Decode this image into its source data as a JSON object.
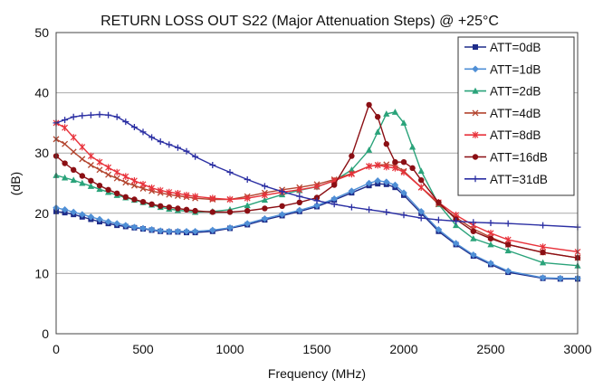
{
  "chart_data": {
    "type": "line",
    "title": "RETURN LOSS OUT S22 (Major Attenuation Steps) @ +25°C",
    "xlabel": "Frequency (MHz)",
    "ylabel": "(dB)",
    "xlim": [
      0,
      3000
    ],
    "ylim": [
      0,
      50
    ],
    "xticks": [
      0,
      500,
      1000,
      1500,
      2000,
      2500,
      3000
    ],
    "yticks": [
      0,
      10,
      20,
      30,
      40,
      50
    ],
    "grid": "horizontal",
    "legend_position": "top-right",
    "series": [
      {
        "name": "ATT=0dB",
        "color": "#1f2d8a",
        "marker": "square",
        "x": [
          0,
          50,
          100,
          150,
          200,
          250,
          300,
          350,
          400,
          450,
          500,
          550,
          600,
          650,
          700,
          750,
          800,
          900,
          1000,
          1100,
          1200,
          1300,
          1400,
          1500,
          1600,
          1700,
          1800,
          1850,
          1900,
          1950,
          2000,
          2100,
          2200,
          2300,
          2400,
          2500,
          2600,
          2800,
          2900,
          3000
        ],
        "y": [
          20.3,
          20.1,
          19.8,
          19.4,
          19.0,
          18.6,
          18.3,
          18.0,
          17.8,
          17.6,
          17.4,
          17.2,
          17.0,
          16.9,
          16.9,
          16.8,
          16.8,
          17.0,
          17.5,
          18.1,
          18.9,
          19.6,
          20.3,
          21.1,
          22.2,
          23.4,
          24.6,
          24.9,
          24.8,
          24.3,
          23.0,
          20.0,
          17.0,
          14.8,
          12.9,
          11.5,
          10.2,
          9.2,
          9.1,
          9.1
        ]
      },
      {
        "name": "ATT=1dB",
        "color": "#4f8fd6",
        "marker": "diamond",
        "x": [
          0,
          50,
          100,
          150,
          200,
          250,
          300,
          350,
          400,
          450,
          500,
          550,
          600,
          650,
          700,
          750,
          800,
          900,
          1000,
          1100,
          1200,
          1300,
          1400,
          1500,
          1600,
          1700,
          1800,
          1850,
          1900,
          1950,
          2000,
          2100,
          2200,
          2300,
          2400,
          2500,
          2600,
          2800,
          2900,
          3000
        ],
        "y": [
          20.9,
          20.6,
          20.2,
          19.8,
          19.4,
          19.0,
          18.6,
          18.3,
          18.0,
          17.7,
          17.5,
          17.3,
          17.1,
          17.0,
          17.0,
          17.0,
          17.0,
          17.2,
          17.6,
          18.3,
          19.1,
          19.8,
          20.5,
          21.3,
          22.4,
          23.7,
          25.0,
          25.4,
          25.2,
          24.7,
          23.4,
          20.3,
          17.3,
          15.0,
          13.1,
          11.7,
          10.4,
          9.3,
          9.2,
          9.2
        ]
      },
      {
        "name": "ATT=2dB",
        "color": "#2aa37a",
        "marker": "triangle",
        "x": [
          0,
          50,
          100,
          150,
          200,
          250,
          300,
          350,
          400,
          450,
          500,
          550,
          600,
          650,
          700,
          800,
          900,
          1000,
          1100,
          1200,
          1300,
          1400,
          1500,
          1600,
          1700,
          1800,
          1850,
          1900,
          1950,
          2000,
          2050,
          2100,
          2200,
          2300,
          2400,
          2500,
          2600,
          2800,
          3000
        ],
        "y": [
          26.3,
          25.9,
          25.5,
          25.0,
          24.5,
          24.0,
          23.5,
          23.0,
          22.6,
          22.2,
          21.8,
          21.4,
          21.0,
          20.7,
          20.5,
          20.2,
          20.3,
          20.6,
          21.3,
          22.2,
          23.1,
          23.8,
          24.4,
          25.4,
          27.2,
          30.5,
          33.5,
          36.5,
          36.8,
          35.0,
          31.0,
          27.0,
          21.5,
          18.0,
          15.8,
          14.8,
          13.8,
          11.8,
          11.3
        ]
      },
      {
        "name": "ATT=4dB",
        "color": "#b3452f",
        "marker": "x",
        "x": [
          0,
          50,
          100,
          150,
          200,
          250,
          300,
          350,
          400,
          450,
          500,
          550,
          600,
          650,
          700,
          750,
          800,
          900,
          1000,
          1100,
          1200,
          1300,
          1400,
          1500,
          1600,
          1700,
          1800,
          1850,
          1900,
          1950,
          2000,
          2100,
          2200,
          2300,
          2400,
          2500,
          2600,
          2800,
          3000
        ],
        "y": [
          32.3,
          31.5,
          30.2,
          29.0,
          28.0,
          27.2,
          26.4,
          25.8,
          25.1,
          24.6,
          24.1,
          23.7,
          23.4,
          23.1,
          22.9,
          22.7,
          22.5,
          22.3,
          22.3,
          22.8,
          23.4,
          23.9,
          24.3,
          24.8,
          25.6,
          26.6,
          27.8,
          28.0,
          28.1,
          27.9,
          27.0,
          24.3,
          21.5,
          19.3,
          17.4,
          16.0,
          14.8,
          13.5,
          12.6
        ]
      },
      {
        "name": "ATT=8dB",
        "color": "#e8323b",
        "marker": "star",
        "x": [
          0,
          50,
          100,
          150,
          200,
          250,
          300,
          350,
          400,
          450,
          500,
          550,
          600,
          650,
          700,
          750,
          800,
          900,
          1000,
          1100,
          1200,
          1300,
          1400,
          1500,
          1600,
          1700,
          1800,
          1850,
          1900,
          1950,
          2000,
          2100,
          2200,
          2300,
          2400,
          2500,
          2600,
          2800,
          3000
        ],
        "y": [
          35.0,
          34.2,
          32.6,
          31.0,
          29.5,
          28.5,
          27.6,
          26.8,
          26.1,
          25.4,
          24.8,
          24.2,
          23.8,
          23.5,
          23.3,
          23.0,
          22.8,
          22.5,
          22.3,
          22.5,
          23.0,
          23.5,
          23.9,
          24.4,
          25.4,
          26.5,
          27.8,
          28.0,
          27.7,
          27.5,
          26.8,
          24.3,
          21.8,
          19.7,
          18.0,
          16.7,
          15.6,
          14.4,
          13.6
        ]
      },
      {
        "name": "ATT=16dB",
        "color": "#8b0f14",
        "marker": "circle",
        "x": [
          0,
          50,
          100,
          150,
          200,
          250,
          300,
          350,
          400,
          450,
          500,
          550,
          600,
          650,
          700,
          750,
          800,
          900,
          1000,
          1100,
          1200,
          1300,
          1400,
          1500,
          1600,
          1700,
          1800,
          1850,
          1900,
          1950,
          2000,
          2050,
          2100,
          2200,
          2300,
          2400,
          2500,
          2600,
          2800,
          3000
        ],
        "y": [
          29.5,
          28.3,
          27.2,
          26.2,
          25.4,
          24.6,
          23.9,
          23.3,
          22.7,
          22.3,
          21.9,
          21.5,
          21.2,
          21.0,
          20.8,
          20.6,
          20.4,
          20.2,
          20.2,
          20.4,
          20.8,
          21.2,
          21.8,
          22.6,
          24.7,
          29.5,
          38.0,
          36.0,
          31.5,
          28.5,
          28.5,
          27.5,
          25.5,
          21.8,
          19.0,
          17.0,
          15.8,
          14.8,
          13.5,
          12.6
        ]
      },
      {
        "name": "ATT=31dB",
        "color": "#2b2fa3",
        "marker": "plus",
        "x": [
          0,
          50,
          100,
          150,
          200,
          250,
          300,
          350,
          400,
          450,
          500,
          550,
          600,
          650,
          700,
          750,
          800,
          900,
          1000,
          1100,
          1200,
          1300,
          1400,
          1500,
          1600,
          1700,
          1800,
          1900,
          2000,
          2100,
          2200,
          2300,
          2400,
          2500,
          2600,
          2800,
          3000
        ],
        "y": [
          35.0,
          35.5,
          36.0,
          36.2,
          36.3,
          36.4,
          36.3,
          36.0,
          35.2,
          34.3,
          33.5,
          32.6,
          31.9,
          31.4,
          30.9,
          30.3,
          29.4,
          28.0,
          26.8,
          25.6,
          24.5,
          23.6,
          22.8,
          22.1,
          21.5,
          21.0,
          20.6,
          20.2,
          19.7,
          19.2,
          18.9,
          18.7,
          18.5,
          18.4,
          18.3,
          18.0,
          17.7
        ]
      }
    ]
  }
}
